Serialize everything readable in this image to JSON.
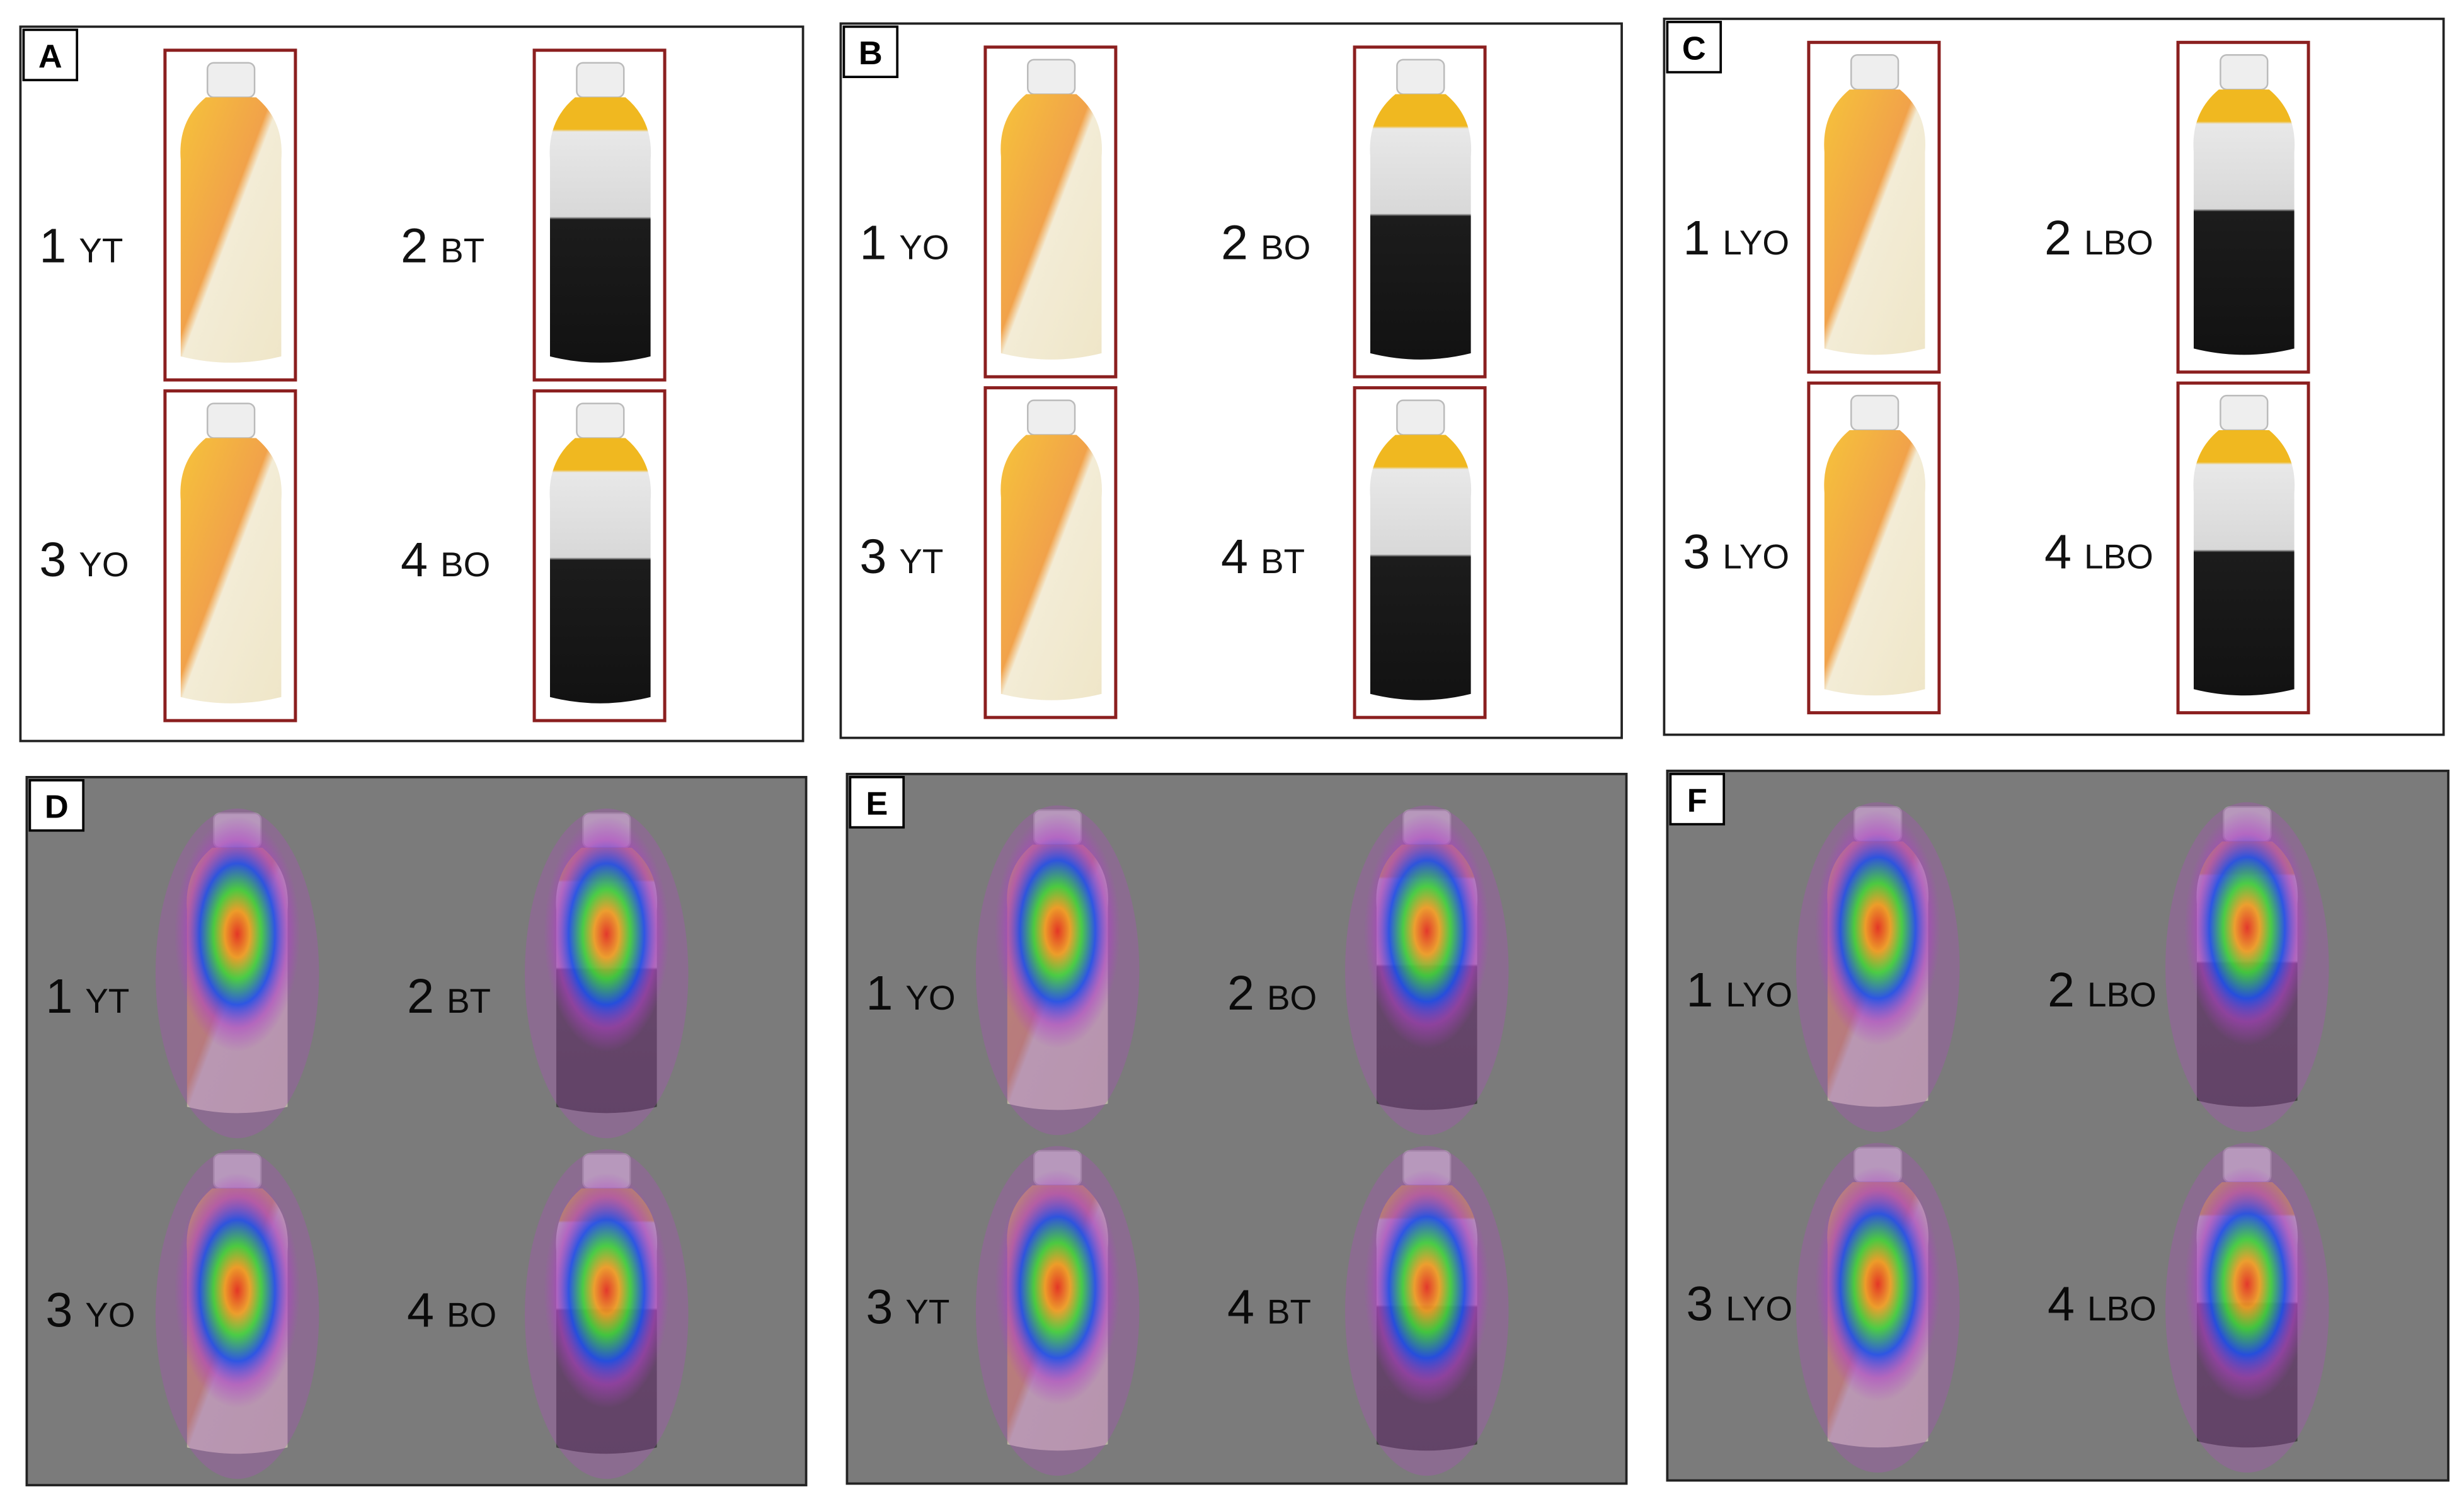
{
  "panels": [
    {
      "letter": "A",
      "items": [
        {
          "number": 1,
          "label": "YT"
        },
        {
          "number": 2,
          "label": "BT"
        },
        {
          "number": 3,
          "label": "YO"
        },
        {
          "number": 4,
          "label": "BO"
        }
      ]
    },
    {
      "letter": "B",
      "items": [
        {
          "number": 1,
          "label": "YO"
        },
        {
          "number": 2,
          "label": "BO"
        },
        {
          "number": 3,
          "label": "YT"
        },
        {
          "number": 4,
          "label": "BT"
        }
      ]
    },
    {
      "letter": "C",
      "items": [
        {
          "number": 1,
          "label": "LYO"
        },
        {
          "number": 2,
          "label": "LBO"
        },
        {
          "number": 3,
          "label": "LYO"
        },
        {
          "number": 4,
          "label": "LBO"
        }
      ]
    },
    {
      "letter": "D",
      "items": [
        {
          "number": 1,
          "label": "YT"
        },
        {
          "number": 2,
          "label": "BT"
        },
        {
          "number": 3,
          "label": "YO"
        },
        {
          "number": 4,
          "label": "BO"
        }
      ]
    },
    {
      "letter": "E",
      "items": [
        {
          "number": 1,
          "label": "YO"
        },
        {
          "number": 2,
          "label": "BO"
        },
        {
          "number": 3,
          "label": "YT"
        },
        {
          "number": 4,
          "label": "BT"
        }
      ]
    },
    {
      "letter": "F",
      "items": [
        {
          "number": 1,
          "label": "LYO"
        },
        {
          "number": 2,
          "label": "LBO"
        },
        {
          "number": 3,
          "label": "LYO"
        },
        {
          "number": 4,
          "label": "LBO"
        }
      ]
    }
  ]
}
